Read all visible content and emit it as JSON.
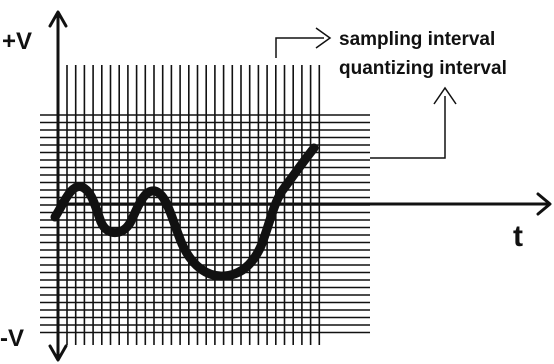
{
  "labels": {
    "plus_v": "+V",
    "minus_v": "-V",
    "time": "t",
    "sampling": "sampling interval",
    "quantizing": "quantizing interval"
  },
  "colors": {
    "ink": "#111111",
    "background": "#ffffff"
  }
}
